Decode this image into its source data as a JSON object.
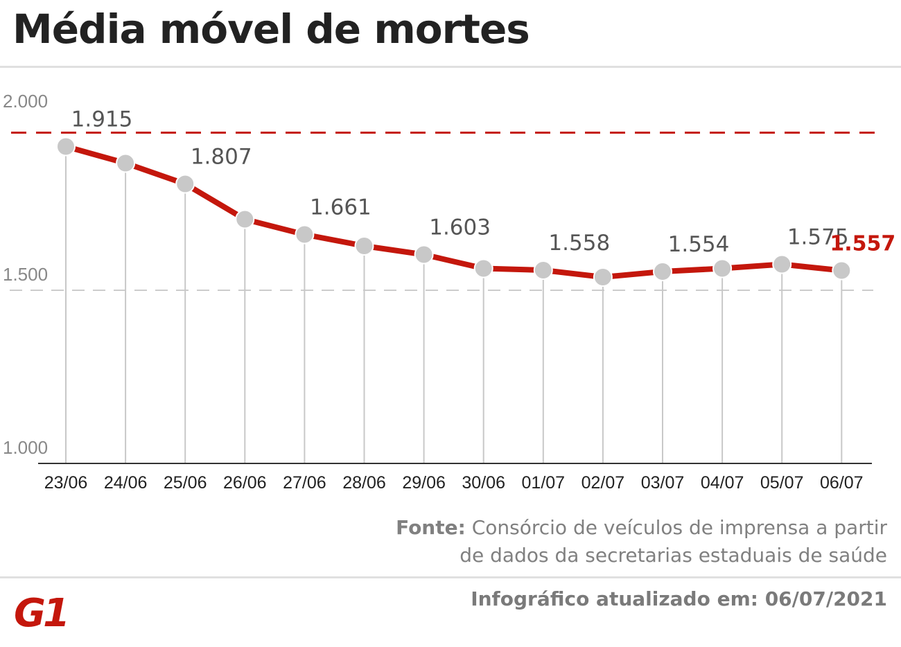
{
  "title": "Média móvel de mortes",
  "chart_data": {
    "type": "line",
    "categories": [
      "23/06",
      "24/06",
      "25/06",
      "26/06",
      "27/06",
      "28/06",
      "29/06",
      "30/06",
      "01/07",
      "02/07",
      "03/07",
      "04/07",
      "05/07",
      "06/07"
    ],
    "values": [
      1915,
      1867,
      1807,
      1705,
      1661,
      1628,
      1603,
      1563,
      1558,
      1538,
      1554,
      1563,
      1575,
      1557
    ],
    "data_labels": [
      "1.915",
      null,
      "1.807",
      null,
      "1.661",
      null,
      "1.603",
      null,
      "1.558",
      null,
      "1.554",
      null,
      "1.575",
      "1.557"
    ],
    "yticks": [
      {
        "value": 2000,
        "label": "2.000"
      },
      {
        "value": 1500,
        "label": "1.500"
      },
      {
        "value": 1000,
        "label": "1.000"
      }
    ],
    "ylim": [
      1000,
      2000
    ],
    "reference_line": 1955,
    "colors": {
      "line": "#c4170c",
      "marker": "#c8c8c8",
      "highlight_label": "#c4170c",
      "label": "#555555",
      "grid": "#bbbbbb"
    }
  },
  "source": {
    "label": "Fonte:",
    "line1": "Consórcio de veículos de imprensa a partir",
    "line2": "de dados da secretarias estaduais de saúde"
  },
  "updated": "Infográfico atualizado em: 06/07/2021",
  "logo": {
    "text": "G1",
    "color": "#c4170c"
  }
}
